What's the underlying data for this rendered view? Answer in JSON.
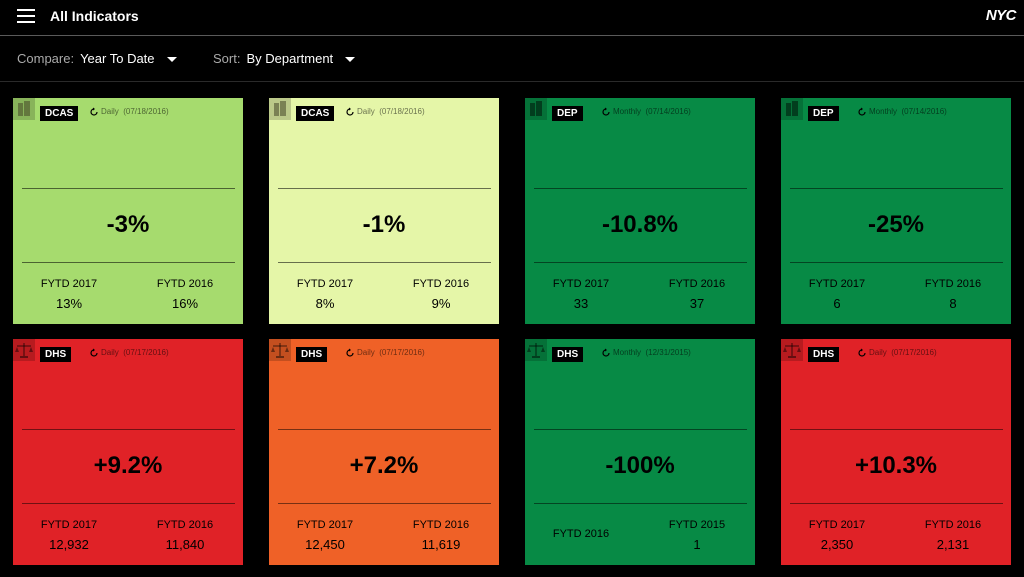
{
  "header": {
    "title": "All Indicators",
    "logo": "NYC",
    "menu_icon": "hamburger-menu-icon"
  },
  "toolbar": {
    "compare_label": "Compare:",
    "compare_value": "Year To Date",
    "sort_label": "Sort:",
    "sort_value": "By Department"
  },
  "colors": {
    "light_green": "#a6db6e",
    "pale_green": "#e5f6a8",
    "green": "#078a45",
    "red": "#e02227",
    "orange": "#ef6127"
  },
  "cards": [
    {
      "dept": "DCAS",
      "icon": "building-icon",
      "freq": "Daily",
      "date": "(07/18/2016)",
      "change": "-3%",
      "left_label": "FYTD 2017",
      "left_value": "13%",
      "right_label": "FYTD 2016",
      "right_value": "16%",
      "color": "#a6db6e"
    },
    {
      "dept": "DCAS",
      "icon": "building-icon",
      "freq": "Daily",
      "date": "(07/18/2016)",
      "change": "-1%",
      "left_label": "FYTD 2017",
      "left_value": "8%",
      "right_label": "FYTD 2016",
      "right_value": "9%",
      "color": "#e5f6a8"
    },
    {
      "dept": "DEP",
      "icon": "building-icon",
      "freq": "Monthly",
      "date": "(07/14/2016)",
      "change": "-10.8%",
      "left_label": "FYTD 2017",
      "left_value": "33",
      "right_label": "FYTD 2016",
      "right_value": "37",
      "color": "#078a45"
    },
    {
      "dept": "DEP",
      "icon": "building-icon",
      "freq": "Monthly",
      "date": "(07/14/2016)",
      "change": "-25%",
      "left_label": "FYTD 2017",
      "left_value": "6",
      "right_label": "FYTD 2016",
      "right_value": "8",
      "color": "#078a45"
    },
    {
      "dept": "DHS",
      "icon": "scales-icon",
      "freq": "Daily",
      "date": "(07/17/2016)",
      "change": "+9.2%",
      "left_label": "FYTD 2017",
      "left_value": "12,932",
      "right_label": "FYTD 2016",
      "right_value": "11,840",
      "color": "#e02227"
    },
    {
      "dept": "DHS",
      "icon": "scales-icon",
      "freq": "Daily",
      "date": "(07/17/2016)",
      "change": "+7.2%",
      "left_label": "FYTD 2017",
      "left_value": "12,450",
      "right_label": "FYTD 2016",
      "right_value": "11,619",
      "color": "#ef6127"
    },
    {
      "dept": "DHS",
      "icon": "scales-icon",
      "freq": "Monthly",
      "date": "(12/31/2015)",
      "change": "-100%",
      "left_label": "FYTD 2016",
      "left_value": "",
      "right_label": "FYTD 2015",
      "right_value": "1",
      "color": "#078a45"
    },
    {
      "dept": "DHS",
      "icon": "scales-icon",
      "freq": "Daily",
      "date": "(07/17/2016)",
      "change": "+10.3%",
      "left_label": "FYTD 2017",
      "left_value": "2,350",
      "right_label": "FYTD 2016",
      "right_value": "2,131",
      "color": "#e02227"
    }
  ]
}
